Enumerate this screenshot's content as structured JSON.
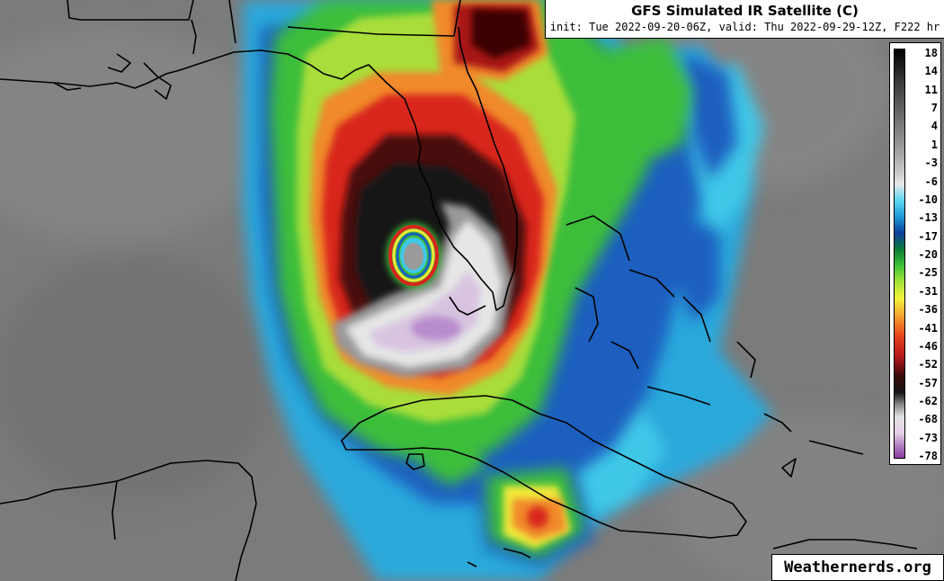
{
  "title": {
    "main": "GFS Simulated IR Satellite (C)",
    "sub": "init: Tue 2022-09-20-06Z, valid: Thu 2022-09-29-12Z, F222 hr"
  },
  "legend": {
    "labels": [
      "18",
      "14",
      "11",
      "7",
      "4",
      "1",
      "-3",
      "-6",
      "-10",
      "-13",
      "-17",
      "-20",
      "-25",
      "-31",
      "-36",
      "-41",
      "-46",
      "-52",
      "-57",
      "-62",
      "-68",
      "-73",
      "-78"
    ]
  },
  "credit": "Weathernerds.org",
  "colors": {
    "background_gray": "#7a7a7a",
    "clear_warm_gray": "#808080",
    "cloud_light": "#9a9a9a",
    "cyan": "#3fc8e8",
    "blue": "#1a5fbf",
    "green": "#3ebe3a",
    "lime": "#9fd83a",
    "yellow": "#f0e83a",
    "orange": "#f08a2a",
    "red": "#d8261c",
    "dark_red": "#5a0808",
    "black": "#111111",
    "white": "#e8e8e8",
    "lavender": "#d8c4e0",
    "purple": "#a878c0",
    "coastline": "#000000"
  },
  "map": {
    "region": "Gulf of Mexico / Florida / Cuba / Bahamas",
    "feature": "hurricane-eye"
  }
}
